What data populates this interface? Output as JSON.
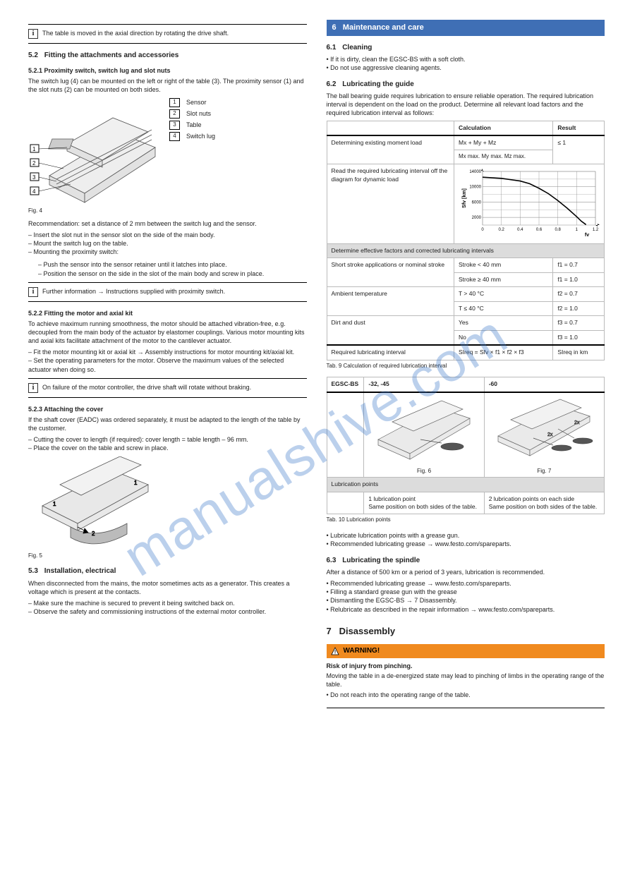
{
  "watermark": "manualshive.com",
  "left": {
    "info1": "The table is moved in the axial direction by rotating the drive shaft.",
    "h_52_num": "5.2",
    "h_52": "Fitting the attachments and accessories",
    "h_521": "5.2.1 Proximity switch, switch lug and slot nuts",
    "p_switch": "The switch lug (4) can be mounted on the left or right of the table (3). The proximity sensor (1) and the slot nuts (2) can be mounted on both sides.",
    "fig4_caption": "Fig. 4",
    "fig4_keys": {
      "k1": "1",
      "v1": "Sensor",
      "k2": "2",
      "v2": "Slot nuts",
      "k3": "3",
      "v3": "Table",
      "k4": "4",
      "v4": "Switch lug"
    },
    "rec": "Recommendation: set a distance of 2 mm between the switch lug and the sensor.",
    "ul1": [
      "Insert the slot nut in the sensor slot on the side of the main body.",
      "Mount the switch lug on the table.",
      "Mounting the proximity switch:"
    ],
    "ul1b": [
      "Push the sensor into the sensor retainer until it latches into place.",
      "Position the sensor on the side in the slot of the main body and screw in place."
    ],
    "info2": "Further information → Instructions supplied with proximity switch.",
    "h_522": "5.2.2 Fitting the motor and axial kit",
    "motor_txt": "To achieve maximum running smoothness, the motor should be attached vibration-free, e.g. decoupled from the main body of the actuator by elastomer couplings. Various motor mounting kits and axial kits facilitate attachment of the motor to the cantilever actuator.",
    "ul2": [
      "Fit the motor mounting kit or axial kit → Assembly instructions for motor mounting kit/axial kit.",
      "Set the operating parameters for the motor. Observe the maximum values of the selected actuator when doing so."
    ],
    "info3": "On failure of the motor controller, the drive shaft will rotate without braking.",
    "h_523": "5.2.3 Attaching the cover",
    "cov_txt": "If the shaft cover (EADC) was ordered separately, it must be adapted to the length of the table by the customer.",
    "ul3": [
      "Cutting the cover to length (if required): cover length = table length – 96 mm.",
      "Place the cover on the table and screw in place."
    ],
    "fig5_caption": "Fig. 5",
    "h_53_num": "5.3",
    "h_53": "Installation, electrical",
    "elec_txt": "When disconnected from the mains, the motor sometimes acts as a generator. This creates a voltage which is present at the contacts.",
    "ul4": [
      "Make sure the machine is secured to prevent it being switched back on.",
      "Observe the safety and commissioning instructions of the external motor controller."
    ]
  },
  "right": {
    "sec_num": "6",
    "sec_title": "Maintenance and care",
    "h_61_num": "6.1",
    "h_61": "Cleaning",
    "ul_clean": [
      "If it is dirty, clean the EGSC-BS with a soft cloth.",
      "Do not use aggressive cleaning agents."
    ],
    "h_62_num": "6.2",
    "h_62": "Lubricating the guide",
    "lub_txt": "The ball bearing guide requires lubrication to ensure reliable operation. The required lubrication interval is dependent on the load on the product. Determine all relevant load factors and the required lubrication interval as follows:",
    "table9": {
      "hdr": [
        "",
        "Calculation",
        "Result"
      ],
      "r1": [
        "Determining existing moment load",
        "Mx + My + Mz",
        "≤ 1"
      ],
      "r1b": [
        "",
        "Mx max.   My max.   Mz max.",
        ""
      ],
      "r2": [
        "Read the required lubricating interval off the diagram for dynamic load",
        "",
        ""
      ],
      "r3_title": "Determine effective factors and corrected lubricating intervals",
      "r4a": [
        "Short stroke applications or nominal stroke",
        "Stroke < 40 mm",
        "f1 = 0.7"
      ],
      "r4b": [
        "",
        "Stroke ≥ 40 mm",
        "f1 = 1.0"
      ],
      "r5": [
        "Ambient temperature",
        "T > 40 °C",
        "f2 = 0.7"
      ],
      "r5b": [
        "",
        "T ≤ 40 °C",
        "f2 = 1.0"
      ],
      "r6": [
        "Dirt and dust",
        "Yes",
        "f3 = 0.7"
      ],
      "r6b": [
        "",
        "No",
        "f3 = 1.0"
      ],
      "r7": [
        "Required lubricating interval",
        "SIreq = Sfv × f1 × f2 × f3",
        "SIreq in km"
      ],
      "caption": "Tab. 9 Calculation of required lubrication interval"
    },
    "chart": {
      "type": "line",
      "x_label": "fv",
      "y_label": "Sfv [km]",
      "xlim": [
        0,
        1.2
      ],
      "ylim": [
        0,
        14000
      ],
      "xtick_step": 0.2,
      "ytick_step": 2000,
      "x_ticks": [
        0,
        0.2,
        0.4,
        0.6,
        0.8,
        1.0,
        1.2
      ],
      "y_ticks": [
        2000,
        6000,
        10000,
        14000
      ],
      "line_color": "#000000",
      "grid_color": "#888888",
      "background_color": "#ffffff",
      "font_size": 6,
      "points": [
        {
          "x": 0.0,
          "y": 12500
        },
        {
          "x": 0.2,
          "y": 12200
        },
        {
          "x": 0.4,
          "y": 11500
        },
        {
          "x": 0.5,
          "y": 10800
        },
        {
          "x": 0.6,
          "y": 9600
        },
        {
          "x": 0.7,
          "y": 8200
        },
        {
          "x": 0.8,
          "y": 6400
        },
        {
          "x": 0.9,
          "y": 4400
        },
        {
          "x": 1.0,
          "y": 2200
        },
        {
          "x": 1.05,
          "y": 1000
        },
        {
          "x": 1.1,
          "y": 100
        }
      ]
    },
    "table10": {
      "hdr": [
        "EGSC-BS",
        "-32, -45",
        "-60"
      ],
      "fig_cap_l": "Fig. 6",
      "fig_cap_r": "Fig. 7",
      "row_lbl": "Lubrication points",
      "row_l": "1 lubrication point\nSame position on both sides of the table.",
      "row_r": "2 lubrication points on each side\nSame position on both sides of the table.",
      "caption": "Tab. 10 Lubrication points"
    },
    "ul_lube": [
      "Lubricate lubrication points with a grease gun.",
      "Recommended lubricating grease → www.festo.com/spareparts."
    ],
    "h_63_num": "6.3",
    "h_63": "Lubricating the spindle",
    "spindle_txt": "After a distance of 500 km or a period of 3 years, lubrication is recommended.",
    "ul_sp": [
      "Recommended lubricating grease → www.festo.com/spareparts.",
      "Filling a standard grease gun with the grease",
      "Dismantling the EGSC-BS → 7 Disassembly.",
      "Relubricate as described in the repair information → www.festo.com/spareparts."
    ],
    "sec7_num": "7",
    "sec7_title": "Disassembly",
    "warn": {
      "title": "WARNING!",
      "sub": "Risk of injury from pinching.",
      "body": "Moving the table in a de-energized state may lead to pinching of limbs in the operating range of the table.",
      "li": "Do not reach into the operating range of the table."
    }
  }
}
